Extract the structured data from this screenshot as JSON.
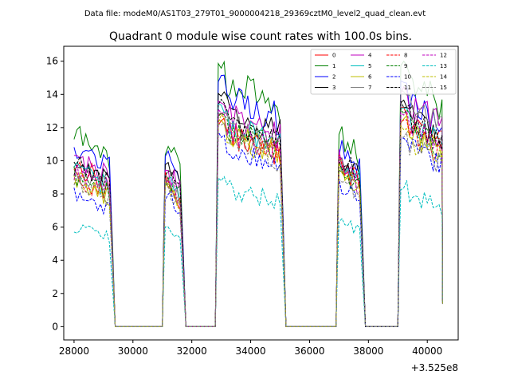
{
  "chart_data": {
    "type": "line",
    "suptitle": "Data file: modeM0/AS1T03_279T01_9000004218_29369cztM0_level2_quad_clean.evt",
    "title": "Quadrant 0 module wise count rates with 100.0s bins.",
    "xlabel": "",
    "ylabel": "",
    "x_offset_label": "+3.525e8",
    "xlim": [
      27650,
      41050
    ],
    "ylim": [
      -0.8,
      16.9
    ],
    "xticks": [
      28000,
      30000,
      32000,
      34000,
      36000,
      38000,
      40000
    ],
    "xtick_labels": [
      "28000",
      "30000",
      "32000",
      "34000",
      "36000",
      "38000",
      "40000"
    ],
    "yticks": [
      0,
      2,
      4,
      6,
      8,
      10,
      12,
      14,
      16
    ],
    "ytick_labels": [
      "0",
      "2",
      "4",
      "6",
      "8",
      "10",
      "12",
      "14",
      "16"
    ],
    "legend_position": "top-right",
    "segments": [
      [
        28000,
        29200
      ],
      [
        31100,
        31600
      ],
      [
        32900,
        35000
      ],
      [
        37000,
        37700
      ],
      [
        39100,
        40500
      ]
    ],
    "gaps": [
      [
        29300,
        31000
      ],
      [
        31700,
        32800
      ],
      [
        35200,
        36900
      ],
      [
        37800,
        39000
      ]
    ],
    "series": [
      {
        "name": "0",
        "color": "#ff0000",
        "dash": "solid",
        "base": [
          9.8,
          8.5,
          11.8,
          10.0,
          12.5
        ]
      },
      {
        "name": "1",
        "color": "#008000",
        "dash": "solid",
        "base": [
          11.6,
          11.0,
          15.0,
          11.5,
          15.2
        ]
      },
      {
        "name": "2",
        "color": "#0000ff",
        "dash": "solid",
        "base": [
          11.0,
          10.7,
          14.2,
          11.0,
          14.0
        ]
      },
      {
        "name": "3",
        "color": "#000000",
        "dash": "solid",
        "base": [
          10.0,
          10.0,
          13.2,
          10.2,
          13.0
        ]
      },
      {
        "name": "4",
        "color": "#bf00bf",
        "dash": "solid",
        "base": [
          10.3,
          9.5,
          13.0,
          10.0,
          13.8
        ]
      },
      {
        "name": "5",
        "color": "#00bfbf",
        "dash": "solid",
        "base": [
          9.5,
          9.0,
          12.5,
          10.0,
          12.6
        ]
      },
      {
        "name": "6",
        "color": "#bfbf00",
        "dash": "solid",
        "base": [
          8.9,
          8.5,
          11.8,
          9.5,
          12.0
        ]
      },
      {
        "name": "7",
        "color": "#808080",
        "dash": "solid",
        "base": [
          9.3,
          8.9,
          12.4,
          9.9,
          13.6
        ]
      },
      {
        "name": "8",
        "color": "#ff0000",
        "dash": "dashed",
        "base": [
          9.1,
          8.8,
          12.0,
          9.8,
          12.0
        ]
      },
      {
        "name": "9",
        "color": "#008000",
        "dash": "dashed",
        "base": [
          9.2,
          9.0,
          12.2,
          9.6,
          12.4
        ]
      },
      {
        "name": "10",
        "color": "#0000ff",
        "dash": "dashed",
        "base": [
          7.9,
          8.0,
          11.0,
          8.5,
          11.0
        ]
      },
      {
        "name": "11",
        "color": "#000000",
        "dash": "dashed",
        "base": [
          9.8,
          9.4,
          12.8,
          10.3,
          12.8
        ]
      },
      {
        "name": "12",
        "color": "#bf00bf",
        "dash": "dashed",
        "base": [
          9.4,
          8.8,
          12.2,
          9.8,
          12.4
        ]
      },
      {
        "name": "13",
        "color": "#00bfbf",
        "dash": "dashed",
        "base": [
          6.0,
          6.0,
          8.5,
          6.5,
          8.2
        ]
      },
      {
        "name": "14",
        "color": "#bfbf00",
        "dash": "dashed",
        "base": [
          9.0,
          8.6,
          11.9,
          9.5,
          11.6
        ]
      },
      {
        "name": "15",
        "color": "#808080",
        "dash": "dashed",
        "base": [
          8.8,
          8.5,
          11.5,
          9.2,
          11.2
        ]
      }
    ]
  }
}
